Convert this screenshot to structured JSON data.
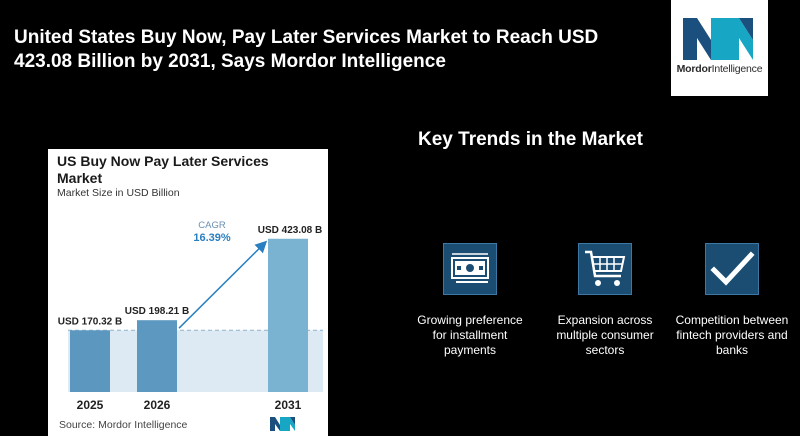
{
  "headline": "United States Buy Now, Pay Later Services Market to Reach USD 423.08 Billion by 2031, Says Mordor Intelligence",
  "logo": {
    "brand_a": "Mordor",
    "brand_b": "Intelligence",
    "icon": "mordor-logo-icon",
    "colors": [
      "#17a7c4",
      "#1b4f7e"
    ]
  },
  "chart_data": {
    "type": "bar",
    "title": "US Buy Now Pay Later Services Market",
    "subtitle": "Market Size in USD Billion",
    "categories": [
      "2025",
      "2026",
      "2031"
    ],
    "values": [
      170.32,
      198.21,
      423.08
    ],
    "value_labels": [
      "USD 170.32 B",
      "USD 198.21 B",
      "USD 423.08 B"
    ],
    "ylim": [
      0,
      450
    ],
    "cagr_label": "CAGR",
    "cagr_value": "16.39%",
    "source": "Source: Mordor Intelligence",
    "bar_colors": [
      "#5b97bf",
      "#5c98c0",
      "#7ab2d2"
    ],
    "accent": "#2a7fc0"
  },
  "trends": {
    "title": "Key Trends in the Market",
    "items": [
      {
        "icon": "money-bill-icon",
        "label_lines": [
          "Growing preference",
          "for installment",
          "payments"
        ]
      },
      {
        "icon": "shopping-cart-icon",
        "label_lines": [
          "Expansion across",
          "multiple consumer",
          "sectors"
        ]
      },
      {
        "icon": "checkmark-icon",
        "label_lines": [
          "Competition between",
          "fintech providers and",
          "banks"
        ]
      }
    ]
  }
}
